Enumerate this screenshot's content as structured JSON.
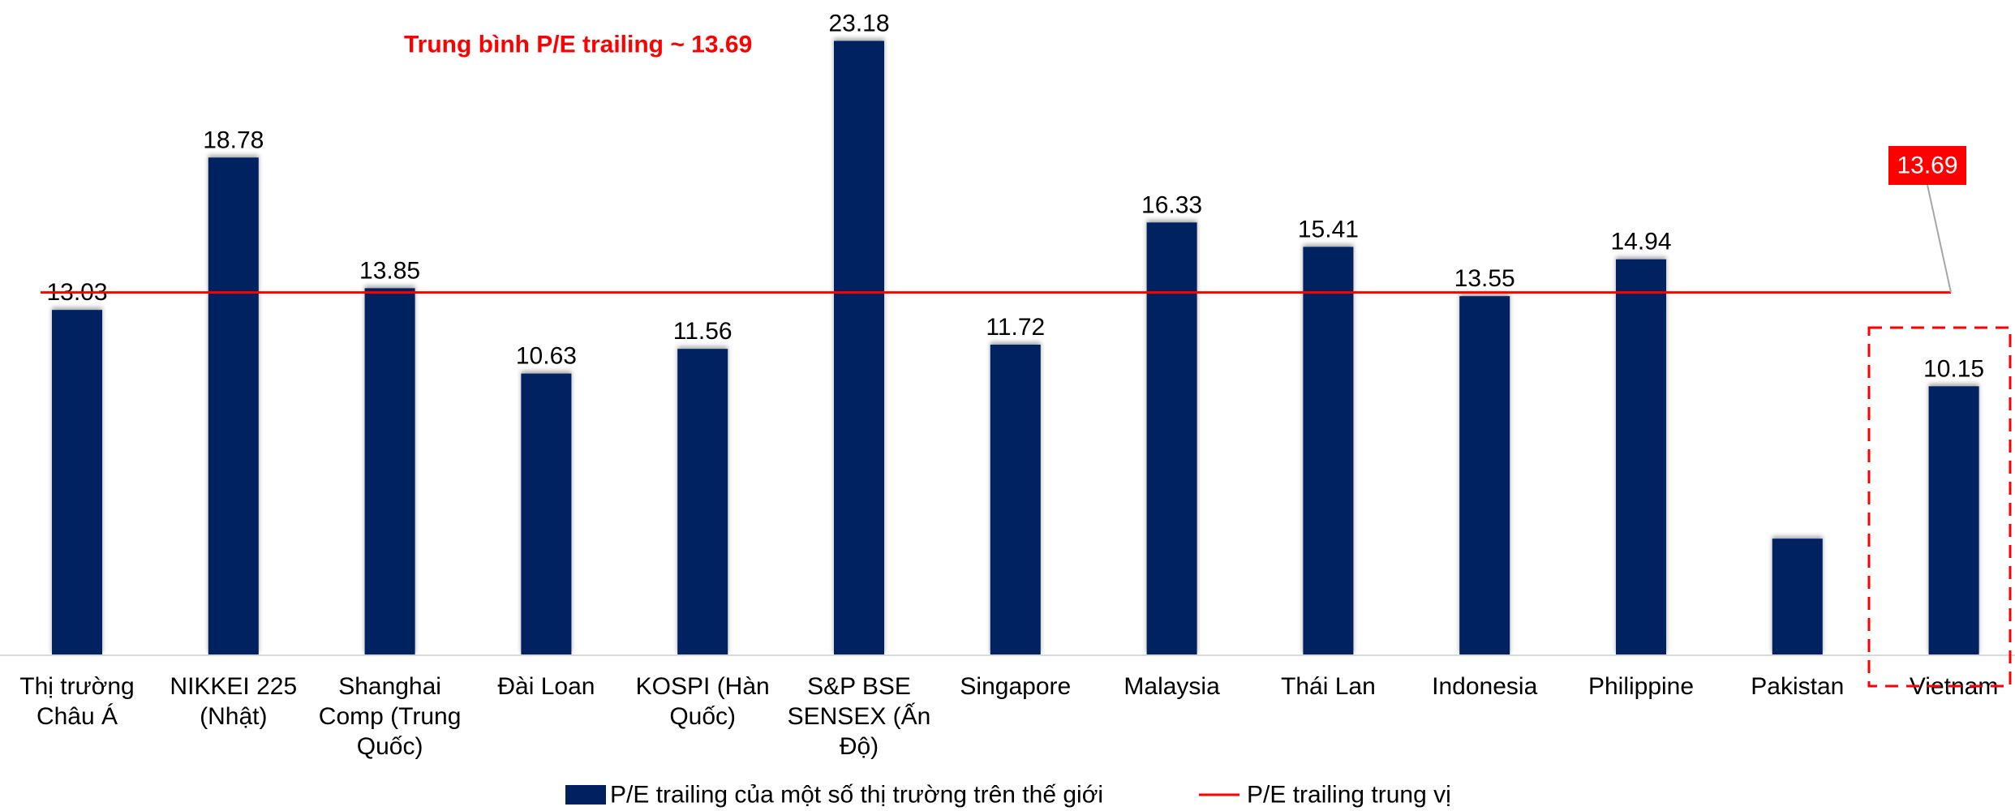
{
  "chart_data": {
    "type": "bar",
    "categories": [
      [
        "Thị trường",
        "Châu Á"
      ],
      [
        "NIKKEI 225",
        "(Nhật)"
      ],
      [
        "Shanghai",
        "Comp (Trung",
        "Quốc)"
      ],
      [
        "Đài Loan"
      ],
      [
        "KOSPI (Hàn",
        "Quốc)"
      ],
      [
        "S&P BSE",
        "SENSEX (Ấn",
        "Độ)"
      ],
      [
        "Singapore"
      ],
      [
        "Malaysia"
      ],
      [
        "Thái Lan"
      ],
      [
        "Indonesia"
      ],
      [
        "Philippine"
      ],
      [
        "Pakistan"
      ],
      [
        "Vietnam"
      ]
    ],
    "series": [
      {
        "name": "P/E trailing của một số thị trường trên thế giới",
        "type": "bar",
        "color": "#002060",
        "values": [
          13.03,
          18.78,
          13.85,
          10.63,
          11.56,
          23.18,
          11.72,
          16.33,
          15.41,
          13.55,
          14.94,
          4.4,
          10.15
        ],
        "labels": [
          "13.03",
          "18.78",
          "13.85",
          "10.63",
          "11.56",
          "23.18",
          "11.72",
          "16.33",
          "15.41",
          "13.55",
          "14.94",
          "",
          "10.15"
        ]
      },
      {
        "name": "P/E trailing trung vị",
        "type": "line",
        "color": "#ff0000",
        "value": 13.69
      }
    ],
    "annotations": {
      "average_text": "Trung bình P/E trailing ~ 13.69",
      "callout_label": "13.69",
      "highlight_category": "Vietnam"
    },
    "ylim": [
      0,
      23.5
    ],
    "grid": false,
    "legend_position": "bottom",
    "title": "",
    "xlabel": "",
    "ylabel": ""
  }
}
